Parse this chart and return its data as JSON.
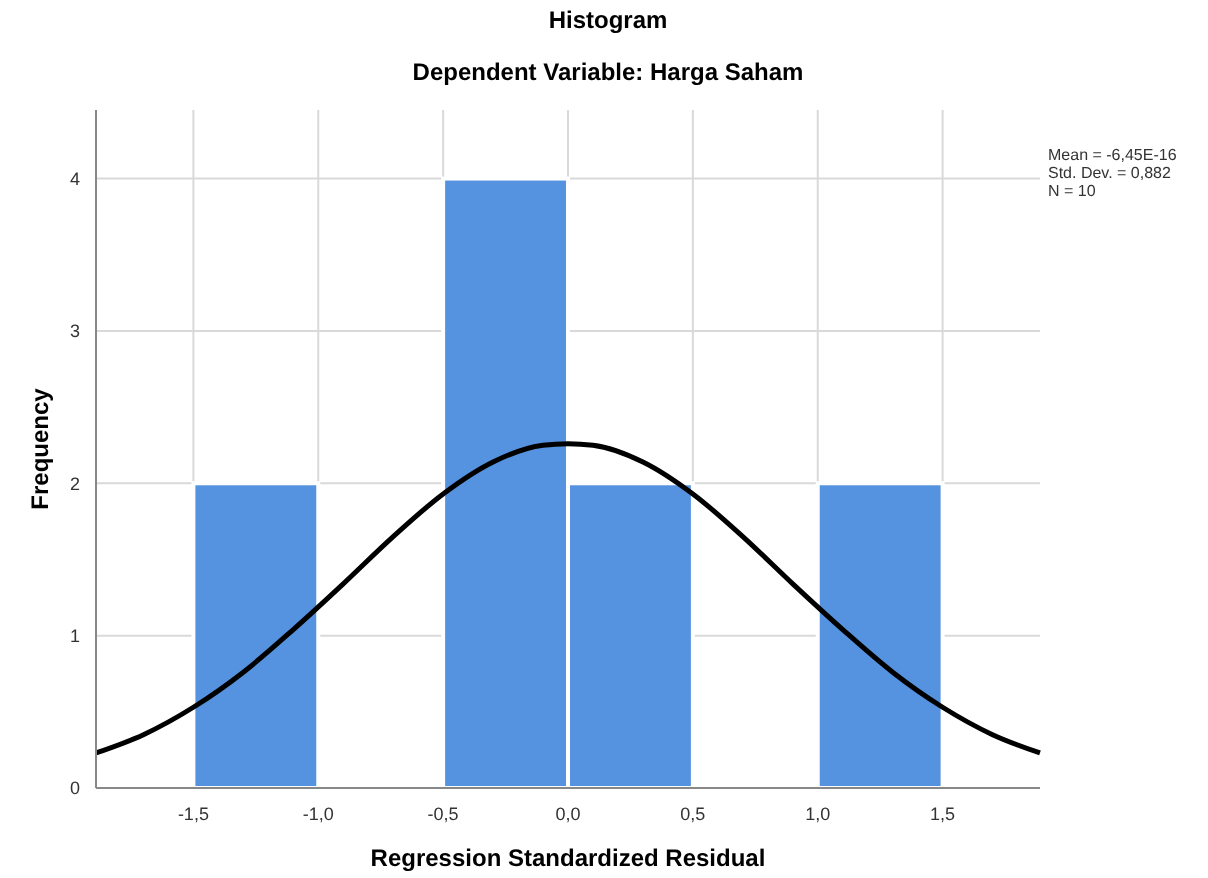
{
  "chart_data": {
    "type": "histogram",
    "title": "Histogram",
    "subtitle": "Dependent Variable: Harga Saham",
    "xlabel": "Regression Standardized Residual",
    "ylabel": "Frequency",
    "bins": [
      -1.5,
      -1.0,
      -0.5,
      0,
      0.5,
      1.0,
      1.5
    ],
    "values": [
      2,
      0,
      4,
      2,
      0,
      2
    ],
    "color": "#5592e0",
    "series": [
      {
        "type": "line",
        "color": "#000000",
        "x": [
          -1.89,
          -1.7,
          -1.5,
          -1.3,
          -1.1,
          -0.9,
          -0.7,
          -0.5,
          -0.3,
          -0.1,
          0,
          0.1,
          0.3,
          0.5,
          0.7,
          0.9,
          1.1,
          1.3,
          1.5,
          1.7,
          1.89
        ],
        "values": [
          0.23,
          0.35,
          0.53,
          0.76,
          1.04,
          1.34,
          1.65,
          1.93,
          2.14,
          2.25,
          2.26,
          2.25,
          2.14,
          1.93,
          1.65,
          1.34,
          1.04,
          0.76,
          0.53,
          0.35,
          0.23
        ]
      }
    ],
    "xlim": [
      -1.89,
      1.89
    ],
    "xticks": [
      {
        "value": -1.5,
        "label": "-1,5"
      },
      {
        "value": -1.0,
        "label": "-1,0"
      },
      {
        "value": -0.5,
        "label": "-0,5"
      },
      {
        "value": 0,
        "label": "0,0"
      },
      {
        "value": 0.5,
        "label": "0,5"
      },
      {
        "value": 1.0,
        "label": "1,0"
      },
      {
        "value": 1.5,
        "label": "1,5"
      }
    ],
    "ylim": [
      0,
      4.45
    ],
    "yticks": [
      0,
      1,
      2,
      3,
      4
    ],
    "grid": true,
    "annotations": [
      "Mean = -6,45E-16",
      "Std. Dev. = 0,882",
      "N = 10"
    ]
  }
}
